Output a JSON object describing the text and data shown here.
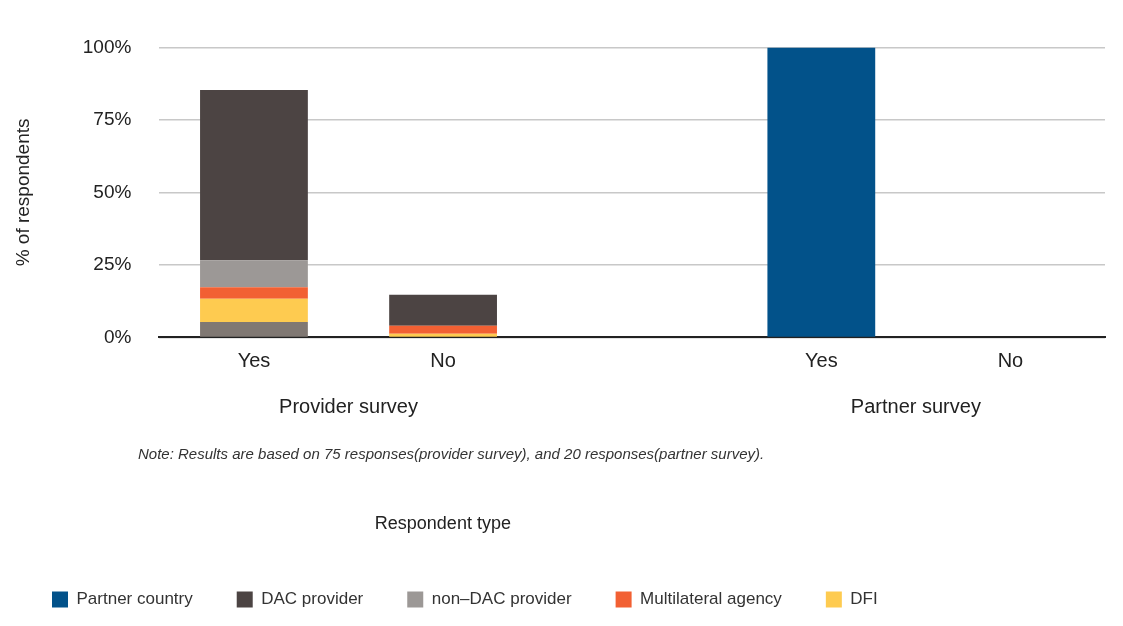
{
  "chart_data": {
    "type": "bar",
    "stacked": true,
    "ylabel": "% of respondents",
    "legend_title": "Respondent type",
    "legend": "bottom left",
    "grid": "y",
    "categories": [
      "Yes",
      "No",
      null,
      "Yes",
      "No"
    ],
    "ylim": [
      0,
      100
    ],
    "yticks": [
      {
        "value": 0,
        "label": "0%"
      },
      {
        "value": 25,
        "label": "25%"
      },
      {
        "value": 50,
        "label": "50%"
      },
      {
        "value": 75,
        "label": "75%"
      },
      {
        "value": 100,
        "label": "100%"
      }
    ],
    "series": [
      {
        "color": "#807873",
        "values": [
          5.3,
          0,
          null,
          0,
          0
        ]
      },
      {
        "name": "DFI",
        "color": "#fecb50",
        "values": [
          8.0,
          1.3,
          null,
          0,
          0
        ]
      },
      {
        "name": "Multilateral agency",
        "color": "#f26033",
        "values": [
          4.0,
          2.7,
          null,
          0,
          0
        ]
      },
      {
        "name": "non–DAC provider",
        "color": "#9c9896",
        "values": [
          9.3,
          0,
          null,
          0,
          0
        ]
      },
      {
        "name": "DAC provider",
        "color": "#4c4443",
        "values": [
          58.7,
          10.7,
          null,
          0,
          0
        ]
      },
      {
        "name": "Partner country",
        "color": "#02528a",
        "values": [
          0,
          0,
          null,
          100,
          0
        ]
      }
    ],
    "annotations": [
      "Provider survey",
      "Partner survey",
      "Note: Results are based on 75 responses(provider survey), and 20 responses(partner survey)."
    ]
  }
}
